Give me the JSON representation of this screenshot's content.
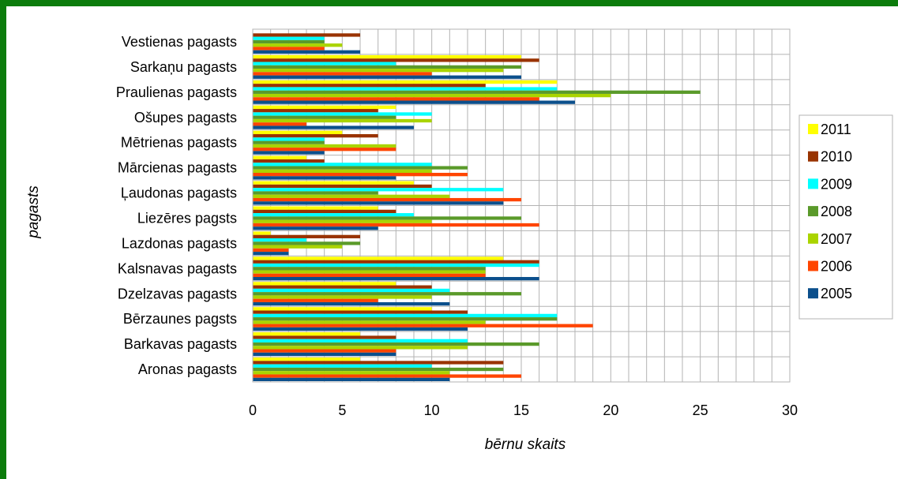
{
  "chart_data": {
    "type": "bar",
    "orientation": "horizontal",
    "title": "",
    "xlabel": "bērnu skaits",
    "ylabel": "pagasts",
    "xlim": [
      0,
      30
    ],
    "xticks": [
      "0",
      "5",
      "10",
      "15",
      "20",
      "25",
      "30"
    ],
    "grid": true,
    "legend_position": "right",
    "categories": [
      "Vestienas pagasts",
      "Sarkaņu pagasts",
      "Praulienas pagasts",
      "Ošupes pagasts",
      "Mētrienas pagasts",
      "Mārcienas pagasts",
      "Ļaudonas pagasts",
      "Liezēres pagsts",
      "Lazdonas pagasts",
      "Kalsnavas pagasts",
      "Dzelzavas pagasts",
      "Bērzaunes pagsts",
      "Barkavas pagasts",
      "Aronas pagasts"
    ],
    "series": [
      {
        "name": "2011",
        "color": "#ffff00",
        "values": [
          0,
          15,
          17,
          8,
          5,
          3,
          9,
          7,
          1,
          14,
          8,
          10,
          6,
          6
        ]
      },
      {
        "name": "2010",
        "color": "#993300",
        "values": [
          6,
          16,
          13,
          7,
          7,
          4,
          10,
          8,
          6,
          16,
          10,
          12,
          8,
          14
        ]
      },
      {
        "name": "2009",
        "color": "#00ffff",
        "values": [
          4,
          8,
          17,
          10,
          4,
          10,
          14,
          9,
          3,
          16,
          11,
          17,
          12,
          10
        ]
      },
      {
        "name": "2008",
        "color": "#5a9a2a",
        "values": [
          4,
          15,
          25,
          8,
          4,
          12,
          7,
          15,
          6,
          13,
          15,
          17,
          16,
          14
        ]
      },
      {
        "name": "2007",
        "color": "#aad400",
        "values": [
          5,
          14,
          20,
          10,
          8,
          10,
          11,
          10,
          5,
          13,
          10,
          13,
          12,
          11
        ]
      },
      {
        "name": "2006",
        "color": "#ff4500",
        "values": [
          4,
          10,
          16,
          3,
          8,
          12,
          15,
          16,
          2,
          13,
          7,
          19,
          8,
          15
        ]
      },
      {
        "name": "2005",
        "color": "#0b4f8c",
        "values": [
          6,
          15,
          18,
          9,
          4,
          8,
          14,
          7,
          2,
          16,
          11,
          12,
          8,
          11
        ]
      }
    ]
  }
}
